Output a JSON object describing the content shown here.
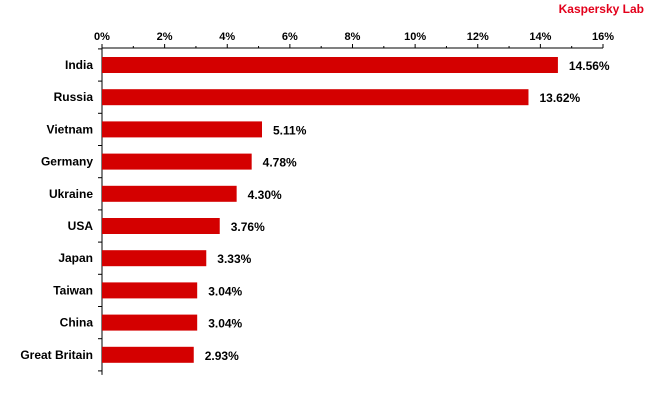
{
  "brand": {
    "label": "Kaspersky Lab",
    "color": "#e3001b"
  },
  "chart_data": {
    "type": "bar",
    "orientation": "horizontal",
    "title": "",
    "xlabel": "",
    "ylabel": "",
    "xlim": [
      0,
      16
    ],
    "x_ticks": [
      "0%",
      "2%",
      "4%",
      "6%",
      "8%",
      "10%",
      "12%",
      "14%",
      "16%"
    ],
    "x_tick_values": [
      0,
      2,
      4,
      6,
      8,
      10,
      12,
      14,
      16
    ],
    "axis_position": "top",
    "grid": false,
    "bar_color": "#d40000",
    "categories": [
      "India",
      "Russia",
      "Vietnam",
      "Germany",
      "Ukraine",
      "USA",
      "Japan",
      "Taiwan",
      "China",
      "Great Britain"
    ],
    "values": [
      14.56,
      13.62,
      5.11,
      4.78,
      4.3,
      3.76,
      3.33,
      3.04,
      3.04,
      2.93
    ],
    "value_labels": [
      "14.56%",
      "13.62%",
      "5.11%",
      "4.78%",
      "4.30%",
      "3.76%",
      "3.33%",
      "3.04%",
      "3.04%",
      "2.93%"
    ]
  }
}
